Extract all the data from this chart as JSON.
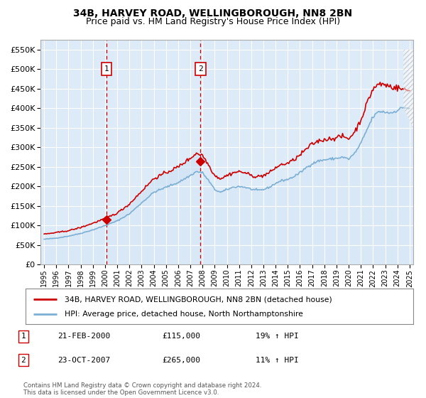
{
  "title": "34B, HARVEY ROAD, WELLINGBOROUGH, NN8 2BN",
  "subtitle": "Price paid vs. HM Land Registry's House Price Index (HPI)",
  "hpi_color": "#7bafd4",
  "price_color": "#cc0000",
  "vline_color": "#cc0000",
  "shade_color": "#d0e4f5",
  "ylim": [
    0,
    575000
  ],
  "yticks": [
    0,
    50000,
    100000,
    150000,
    200000,
    250000,
    300000,
    350000,
    400000,
    450000,
    500000,
    550000
  ],
  "xlim": [
    1994.7,
    2025.3
  ],
  "xlabel_years": [
    1995,
    1996,
    1997,
    1998,
    1999,
    2000,
    2001,
    2002,
    2003,
    2004,
    2005,
    2006,
    2007,
    2008,
    2009,
    2010,
    2011,
    2012,
    2013,
    2014,
    2015,
    2016,
    2017,
    2018,
    2019,
    2020,
    2021,
    2022,
    2023,
    2024,
    2025
  ],
  "sale1_x": 2000.12,
  "sale1_y": 115000,
  "sale1_label": "1",
  "sale2_x": 2007.83,
  "sale2_y": 265000,
  "sale2_label": "2",
  "legend1_label": "34B, HARVEY ROAD, WELLINGBOROUGH, NN8 2BN (detached house)",
  "legend2_label": "HPI: Average price, detached house, North Northamptonshire",
  "footer": "Contains HM Land Registry data © Crown copyright and database right 2024.\nThis data is licensed under the Open Government Licence v3.0.",
  "background_color": "#ddeaf7",
  "grid_color": "#ffffff",
  "title_fontsize": 10,
  "subtitle_fontsize": 9
}
